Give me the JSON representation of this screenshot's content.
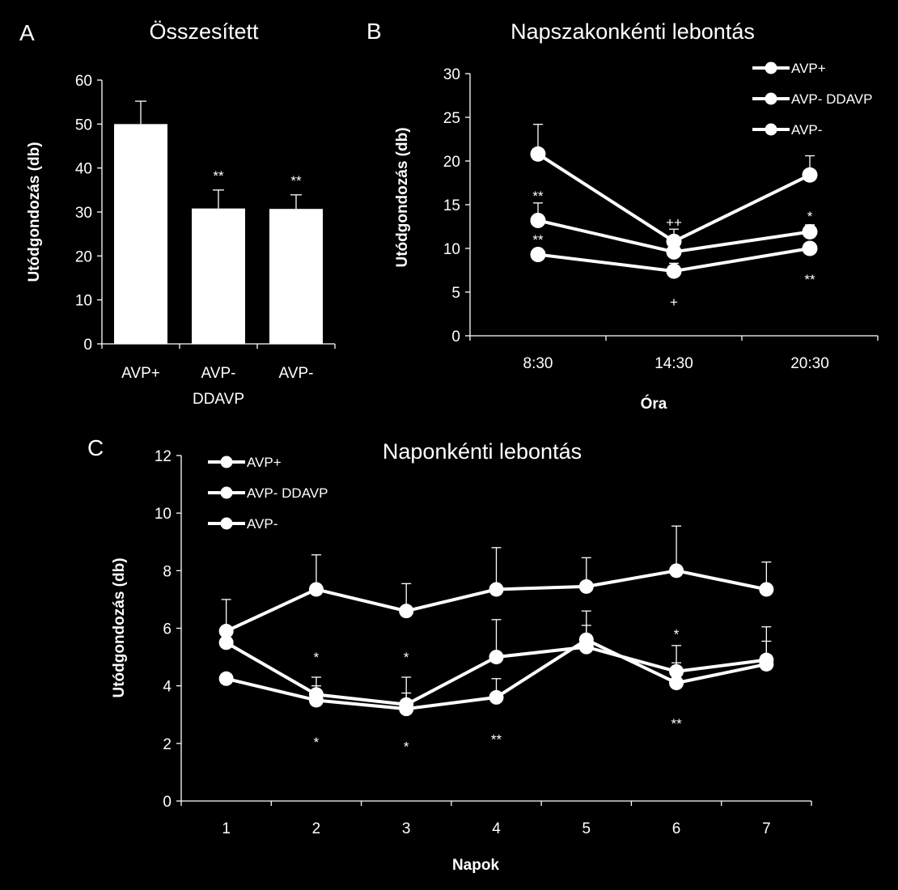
{
  "chart_data": [
    {
      "panel": "A",
      "type": "bar",
      "title": "Összesített",
      "ylabel": "Utódgondozás (db)",
      "xlabel": "",
      "ylim": [
        0,
        60
      ],
      "yticks": [
        "0",
        "10",
        "20",
        "30",
        "40",
        "50",
        "60"
      ],
      "categories": [
        [
          "AVP+"
        ],
        [
          "AVP-",
          "DDAVP"
        ],
        [
          "AVP-"
        ]
      ],
      "values": [
        50,
        30.8,
        30.7
      ],
      "errors": [
        5.2,
        4.2,
        3.2
      ],
      "significance": [
        "",
        "**",
        "**"
      ]
    },
    {
      "panel": "B",
      "type": "line",
      "title": "Napszakonkénti lebontás",
      "ylabel": "Utódgondozás (db)",
      "xlabel": "Óra",
      "ylim": [
        0,
        30
      ],
      "yticks": [
        "0",
        "5",
        "10",
        "15",
        "20",
        "25",
        "30"
      ],
      "categories": [
        "8:30",
        "14:30",
        "20:30"
      ],
      "series": [
        {
          "name": "AVP+",
          "values": [
            20.8,
            10.8,
            18.4
          ],
          "errors": [
            3.4,
            1.4,
            2.2
          ]
        },
        {
          "name": "AVP- DDAVP",
          "values": [
            13.2,
            9.6,
            11.9
          ],
          "errors": [
            2.0,
            1.0,
            0.8
          ]
        },
        {
          "name": "AVP-",
          "values": [
            9.3,
            7.4,
            10.0
          ],
          "errors": [
            0,
            0.9,
            0
          ]
        }
      ],
      "annotations": [
        {
          "text": "**",
          "category": 0,
          "value": 16.0
        },
        {
          "text": "**",
          "category": 0,
          "value": 11.0
        },
        {
          "text": "++",
          "category": 1,
          "value": 13.0
        },
        {
          "text": "+",
          "category": 1,
          "value": 3.9
        },
        {
          "text": "*",
          "category": 2,
          "value": 13.7
        },
        {
          "text": "**",
          "category": 2,
          "value": 6.5
        }
      ]
    },
    {
      "panel": "C",
      "type": "line",
      "title": "Naponkénti lebontás",
      "ylabel": "Utódgondozás (db)",
      "xlabel": "Napok",
      "ylim": [
        0,
        12
      ],
      "yticks": [
        "0",
        "2",
        "4",
        "6",
        "8",
        "10",
        "12"
      ],
      "categories": [
        "1",
        "2",
        "3",
        "4",
        "5",
        "6",
        "7"
      ],
      "series": [
        {
          "name": "AVP+",
          "values": [
            5.9,
            7.35,
            6.6,
            7.35,
            7.45,
            8.0,
            7.35
          ],
          "errors": [
            1.1,
            1.2,
            0.95,
            1.45,
            1.0,
            1.55,
            0.95
          ]
        },
        {
          "name": "AVP- DDAVP",
          "values": [
            5.5,
            3.7,
            3.35,
            5.0,
            5.35,
            4.5,
            4.9
          ],
          "errors": [
            0,
            0.6,
            0.95,
            1.3,
            0.75,
            0.9,
            1.15
          ]
        },
        {
          "name": "AVP-",
          "values": [
            4.25,
            3.5,
            3.2,
            3.6,
            5.6,
            4.1,
            4.75
          ],
          "errors": [
            0,
            0.5,
            0.55,
            0.65,
            1.0,
            0.7,
            0.8
          ]
        }
      ],
      "annotations": [
        {
          "text": "*",
          "category": 1,
          "value": 5.0
        },
        {
          "text": "*",
          "category": 1,
          "value": 2.05
        },
        {
          "text": "*",
          "category": 2,
          "value": 5.0
        },
        {
          "text": "*",
          "category": 2,
          "value": 1.9
        },
        {
          "text": "**",
          "category": 3,
          "value": 2.15
        },
        {
          "text": "*",
          "category": 5,
          "value": 5.8
        },
        {
          "text": "**",
          "category": 5,
          "value": 2.7
        }
      ]
    }
  ],
  "panel_letters": {
    "a": "A",
    "b": "B",
    "c": "C"
  }
}
